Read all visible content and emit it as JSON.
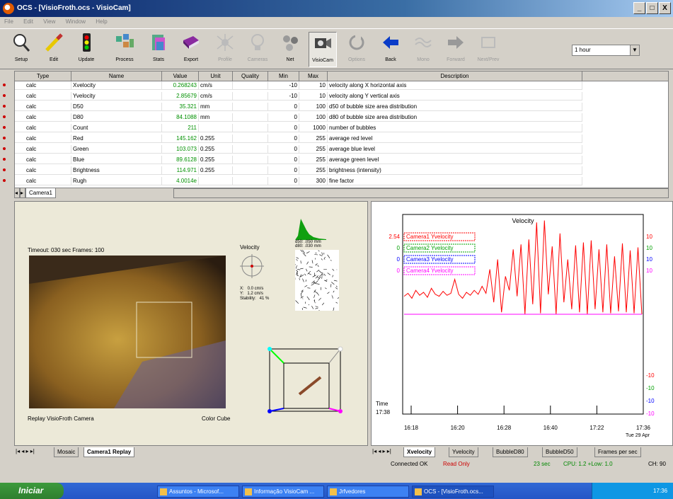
{
  "window": {
    "title": "OCS - [VisioFroth.ocs - VisioCam]",
    "min": "_",
    "max": "□",
    "close": "X"
  },
  "menu": [
    "File",
    "Edit",
    "View",
    "Window",
    "Help"
  ],
  "toolbar": {
    "buttons": [
      {
        "label": "Setup",
        "icon": "magnifier-icon",
        "enabled": true
      },
      {
        "label": "Edit",
        "icon": "pencil-icon",
        "enabled": true
      },
      {
        "label": "Update",
        "icon": "traffic-light-icon",
        "enabled": true
      },
      {
        "label": "Process",
        "icon": "process-icon",
        "enabled": true
      },
      {
        "label": "Stats",
        "icon": "stats-icon",
        "enabled": true
      },
      {
        "label": "Export",
        "icon": "book-icon",
        "enabled": true
      },
      {
        "label": "Profile",
        "icon": "spider-icon",
        "enabled": false
      },
      {
        "label": "Cameras",
        "icon": "bulb-icon",
        "enabled": false
      },
      {
        "label": "Net",
        "icon": "molecule-icon",
        "enabled": true
      },
      {
        "label": "VisioCam",
        "icon": "camera-icon",
        "enabled": true
      },
      {
        "label": "Options",
        "icon": "refresh-icon",
        "enabled": false
      },
      {
        "label": "Back",
        "icon": "arrow-left-icon",
        "enabled": true
      },
      {
        "label": "Mono",
        "icon": "wave-icon",
        "enabled": false
      },
      {
        "label": "Forward",
        "icon": "arrow-right-icon",
        "enabled": false
      },
      {
        "label": "Next/Prev",
        "icon": "next-icon",
        "enabled": false
      }
    ],
    "view_select": "1 hour"
  },
  "table": {
    "columns": [
      "Type",
      "Name",
      "Value",
      "Unit",
      "Quality",
      "Min",
      "Max",
      "Description"
    ],
    "rows": [
      {
        "type": "calc",
        "name": "Xvelocity",
        "value": "0.268243",
        "unit": "cm/s",
        "min": "-10",
        "max": "10",
        "desc": "velocity along X horizontal axis"
      },
      {
        "type": "calc",
        "name": "Yvelocity",
        "value": "2.85679",
        "unit": "cm/s",
        "min": "-10",
        "max": "10",
        "desc": "velocity along Y vertical axis"
      },
      {
        "type": "calc",
        "name": "D50",
        "value": "35.321",
        "unit": "mm",
        "min": "0",
        "max": "100",
        "desc": "d50 of bubble size area distribution"
      },
      {
        "type": "calc",
        "name": "D80",
        "value": "84.1088",
        "unit": "mm",
        "min": "0",
        "max": "100",
        "desc": "d80 of bubble size area distribution"
      },
      {
        "type": "calc",
        "name": "Count",
        "value": "211",
        "unit": "",
        "min": "0",
        "max": "1000",
        "desc": "number of bubbles"
      },
      {
        "type": "calc",
        "name": "Red",
        "value": "145.162",
        "unit": "0.255",
        "min": "0",
        "max": "255",
        "desc": "average red level"
      },
      {
        "type": "calc",
        "name": "Green",
        "value": "103.073",
        "unit": "0.255",
        "min": "0",
        "max": "255",
        "desc": "average blue level"
      },
      {
        "type": "calc",
        "name": "Blue",
        "value": "89.6128",
        "unit": "0.255",
        "min": "0",
        "max": "255",
        "desc": "average green level"
      },
      {
        "type": "calc",
        "name": "Brightness",
        "value": "114.971",
        "unit": "0.255",
        "min": "0",
        "max": "255",
        "desc": "brightness (intensity)"
      },
      {
        "type": "calc",
        "name": "Rugh",
        "value": "4.0014e",
        "unit": "",
        "min": "0",
        "max": "300",
        "desc": "fine factor"
      }
    ],
    "sheet_tab": "Camera1"
  },
  "left": {
    "timeout": "Timeout: 030 sec  Frames: 100",
    "velocity_label": "Velocity",
    "velocity_values": "X:   0.0 cm/s\nY:   1.2 cm/s\nStability:   41 %",
    "hist_text": "d50: .050 mm\nd80: .030 mm",
    "replay_caption": "Replay VisioFroth Camera",
    "color_caption": "Color Cube",
    "tabs": [
      "Mosaic",
      "Camera1 Replay"
    ]
  },
  "chart_data": {
    "type": "line",
    "title": "Velocity",
    "x_ticks": [
      "16:18",
      "16:20",
      "16:28",
      "16:40",
      "17:22",
      "17:36"
    ],
    "x_end_date": "Tue 29 Apr",
    "time_label": "Time",
    "time_value": "17:38",
    "legend": [
      {
        "name": "Camera1 Yvelocity",
        "value": "2.54",
        "color": "#ff0000"
      },
      {
        "name": "Camera2 Yvelocity",
        "value": "0",
        "color": "#00a000"
      },
      {
        "name": "Camera3 Yvelocity",
        "value": "0",
        "color": "#0000ff"
      },
      {
        "name": "Camera4 Yvelocity",
        "value": "0",
        "color": "#ff00ff"
      }
    ],
    "right_ticks_top": [
      "10",
      "10",
      "10",
      "10"
    ],
    "right_ticks_bottom": [
      "-10",
      "-10",
      "-10",
      "-10"
    ],
    "series": [
      {
        "name": "Camera1 Yvelocity",
        "values": [
          1.8,
          2.1,
          1.6,
          2.4,
          1.9,
          2.2,
          1.7,
          2.6,
          2.0,
          1.8,
          2.3,
          1.9,
          2.1,
          3.5,
          2.0,
          1.6,
          2.2,
          1.9,
          2.4,
          2.0,
          2.8,
          2.1,
          4.5,
          1.2,
          5.5,
          0.2,
          3.8,
          2.4,
          6.5,
          1.8,
          7.0,
          0.0,
          7.5,
          1.0,
          9.2,
          0.1,
          9.4,
          2.0,
          6.8,
          0.0,
          8.1,
          1.2,
          5.5,
          0.5,
          6.9,
          0.2,
          7.2,
          0.0,
          7.4,
          0.5,
          6.5,
          0.2,
          7.0,
          0.1,
          5.8,
          0.3,
          7.1,
          0.2,
          6.4,
          0.1,
          6.7,
          0.0
        ]
      },
      {
        "name": "Camera4 Yvelocity",
        "values": [
          0,
          0,
          0,
          0,
          0,
          0,
          0,
          0,
          0,
          0
        ]
      }
    ],
    "ylim": [
      -10,
      10
    ]
  },
  "right_tabs": [
    "Xvelocity",
    "Yvelocity",
    "BubbleD80",
    "BubbleD50",
    "Frames per sec"
  ],
  "status": {
    "connected": "Connected OK",
    "mode": "Read Only",
    "time": "23 sec",
    "cpu": "CPU: 1.2 +Low: 1.0",
    "extra": "CH: 90"
  },
  "taskbar": {
    "start": "Iniciar",
    "tasks": [
      "Assuntos - Microsof...",
      "Informação VisioCam ...",
      "Jrfvedores",
      "OCS - [VisioFroth.ocs..."
    ],
    "clock": "17:36"
  }
}
